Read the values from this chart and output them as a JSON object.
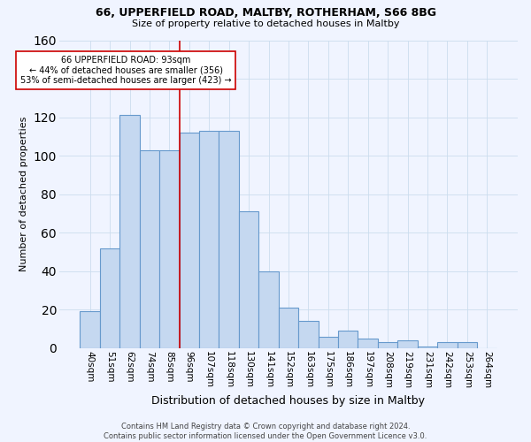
{
  "title1": "66, UPPERFIELD ROAD, MALTBY, ROTHERHAM, S66 8BG",
  "title2": "Size of property relative to detached houses in Maltby",
  "xlabel": "Distribution of detached houses by size in Maltby",
  "ylabel": "Number of detached properties",
  "bar_labels": [
    "40sqm",
    "51sqm",
    "62sqm",
    "74sqm",
    "85sqm",
    "96sqm",
    "107sqm",
    "118sqm",
    "130sqm",
    "141sqm",
    "152sqm",
    "163sqm",
    "175sqm",
    "186sqm",
    "197sqm",
    "208sqm",
    "219sqm",
    "231sqm",
    "242sqm",
    "253sqm",
    "264sqm"
  ],
  "bar_values": [
    19,
    52,
    121,
    103,
    103,
    112,
    113,
    113,
    71,
    40,
    21,
    14,
    6,
    9,
    5,
    3,
    4,
    1,
    3,
    3,
    0
  ],
  "bar_color": "#c5d8f0",
  "bar_edge_color": "#6699cc",
  "vline_x": 5.0,
  "vline_color": "#cc0000",
  "annotation_text": "66 UPPERFIELD ROAD: 93sqm\n← 44% of detached houses are smaller (356)\n53% of semi-detached houses are larger (423) →",
  "annotation_box_color": "#ffffff",
  "annotation_box_edge": "#cc0000",
  "ylim": [
    0,
    160
  ],
  "yticks": [
    0,
    20,
    40,
    60,
    80,
    100,
    120,
    140,
    160
  ],
  "footer": "Contains HM Land Registry data © Crown copyright and database right 2024.\nContains public sector information licensed under the Open Government Licence v3.0.",
  "bg_color": "#f0f4ff",
  "plot_bg_color": "#f0f4ff"
}
